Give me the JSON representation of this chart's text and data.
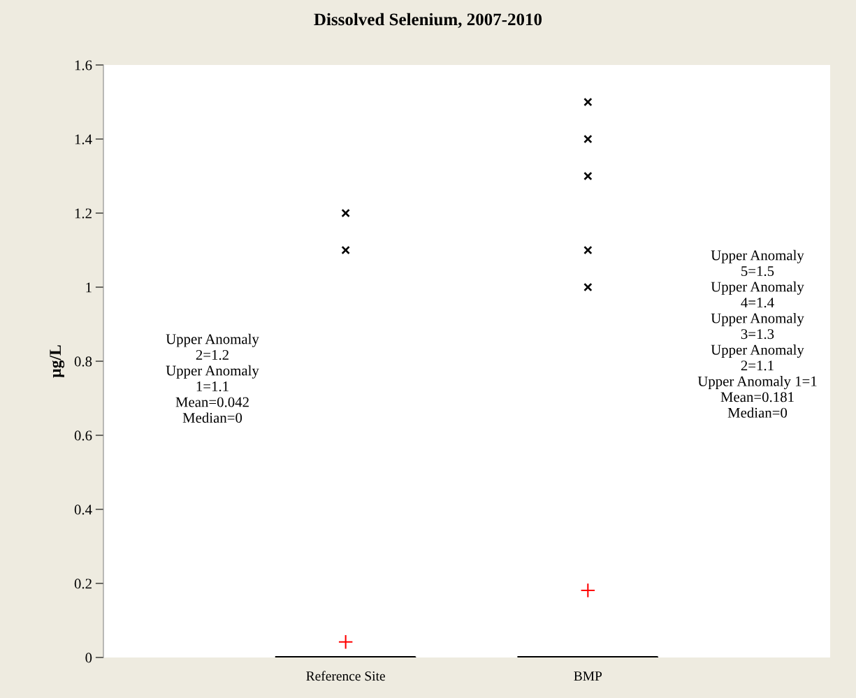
{
  "chart_data": {
    "type": "box",
    "title": "Dissolved Selenium, 2007-2010",
    "ylabel": "µg/L",
    "categories": [
      "Reference Site",
      "BMP"
    ],
    "boxes": [
      {
        "low": 0,
        "q1": 0,
        "median": 0,
        "q3": 0,
        "high": 0,
        "mean": 0.042,
        "outliers": [
          1.1,
          1.2
        ]
      },
      {
        "low": 0,
        "q1": 0,
        "median": 0,
        "q3": 0,
        "high": 0,
        "mean": 0.181,
        "outliers": [
          1.0,
          1.1,
          1.3,
          1.4,
          1.5
        ]
      }
    ],
    "ylim": [
      0,
      1.6
    ],
    "yticks": [
      0,
      0.2,
      0.4,
      0.6,
      0.8,
      1,
      1.2,
      1.4,
      1.6
    ],
    "grid": false,
    "annotations": [
      "Upper Anomaly\n2=1.2\nUpper Anomaly\n1=1.1\nMean=0.042\nMedian=0",
      "Upper Anomaly\n5=1.5\nUpper Anomaly\n4=1.4\nUpper Anomaly\n3=1.3\nUpper Anomaly\n2=1.1\nUpper Anomaly 1=1\nMean=0.181\nMedian=0"
    ]
  }
}
